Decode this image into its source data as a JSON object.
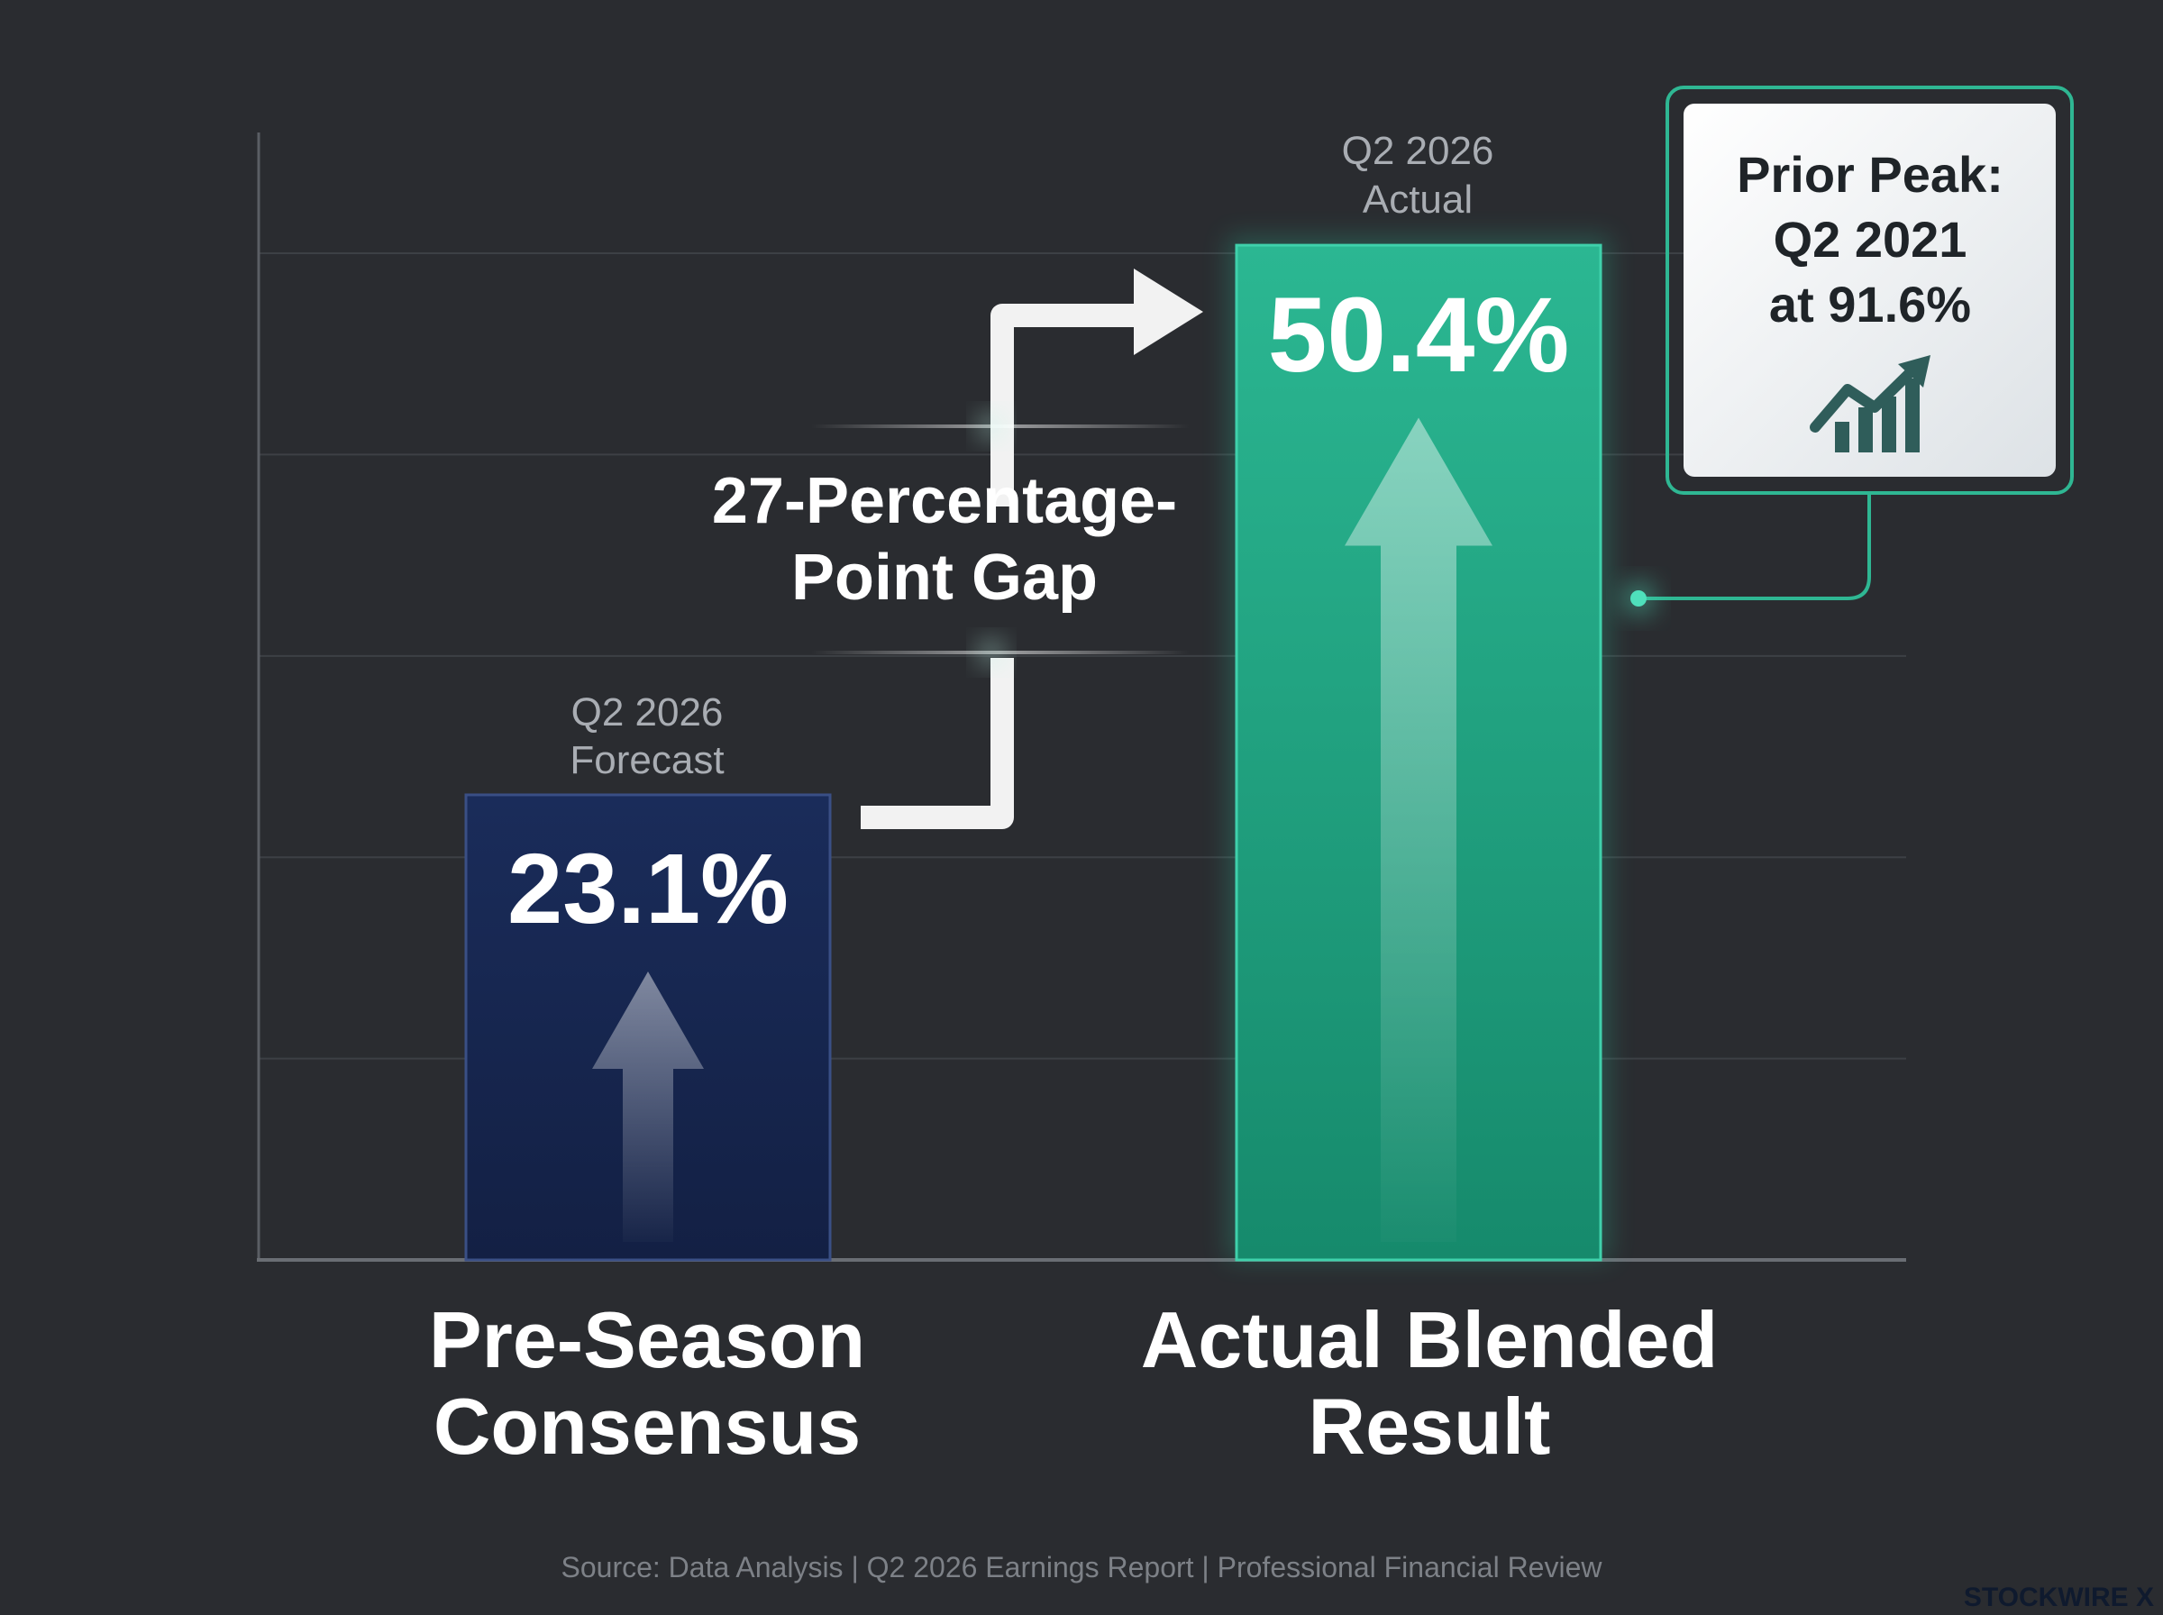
{
  "chart_data": {
    "type": "bar",
    "categories": [
      "Pre-Season Consensus",
      "Actual Blended Result"
    ],
    "category_lines": [
      [
        "Pre-Season",
        "Consensus"
      ],
      [
        "Actual Blended",
        "Result"
      ]
    ],
    "period_labels": [
      [
        "Q2 2026",
        "Forecast"
      ],
      [
        "Q2 2026",
        "Actual"
      ]
    ],
    "values": [
      23.1,
      50.4
    ],
    "value_labels": [
      "23.1%",
      "50.4%"
    ],
    "ylim": [
      0,
      56
    ],
    "grid": true,
    "bar_colors": [
      "#15244a",
      "#1fa585"
    ]
  },
  "annotation": {
    "gap_lines": [
      "27-Percentage-",
      "Point Gap"
    ]
  },
  "callout": {
    "lines": [
      "Prior Peak:",
      "Q2 2021",
      "at 91.6%"
    ],
    "icon": "trending-up-chart-icon"
  },
  "footer": {
    "source": "Source: Data Analysis | Q2 2026 Earnings Report | Professional Financial Review",
    "brand": "STOCKWIRE X"
  },
  "colors": {
    "background": "#2a2c30",
    "accent": "#2cc9a0",
    "forecast_bar": "#15244a",
    "actual_bar": "#1fa585"
  }
}
